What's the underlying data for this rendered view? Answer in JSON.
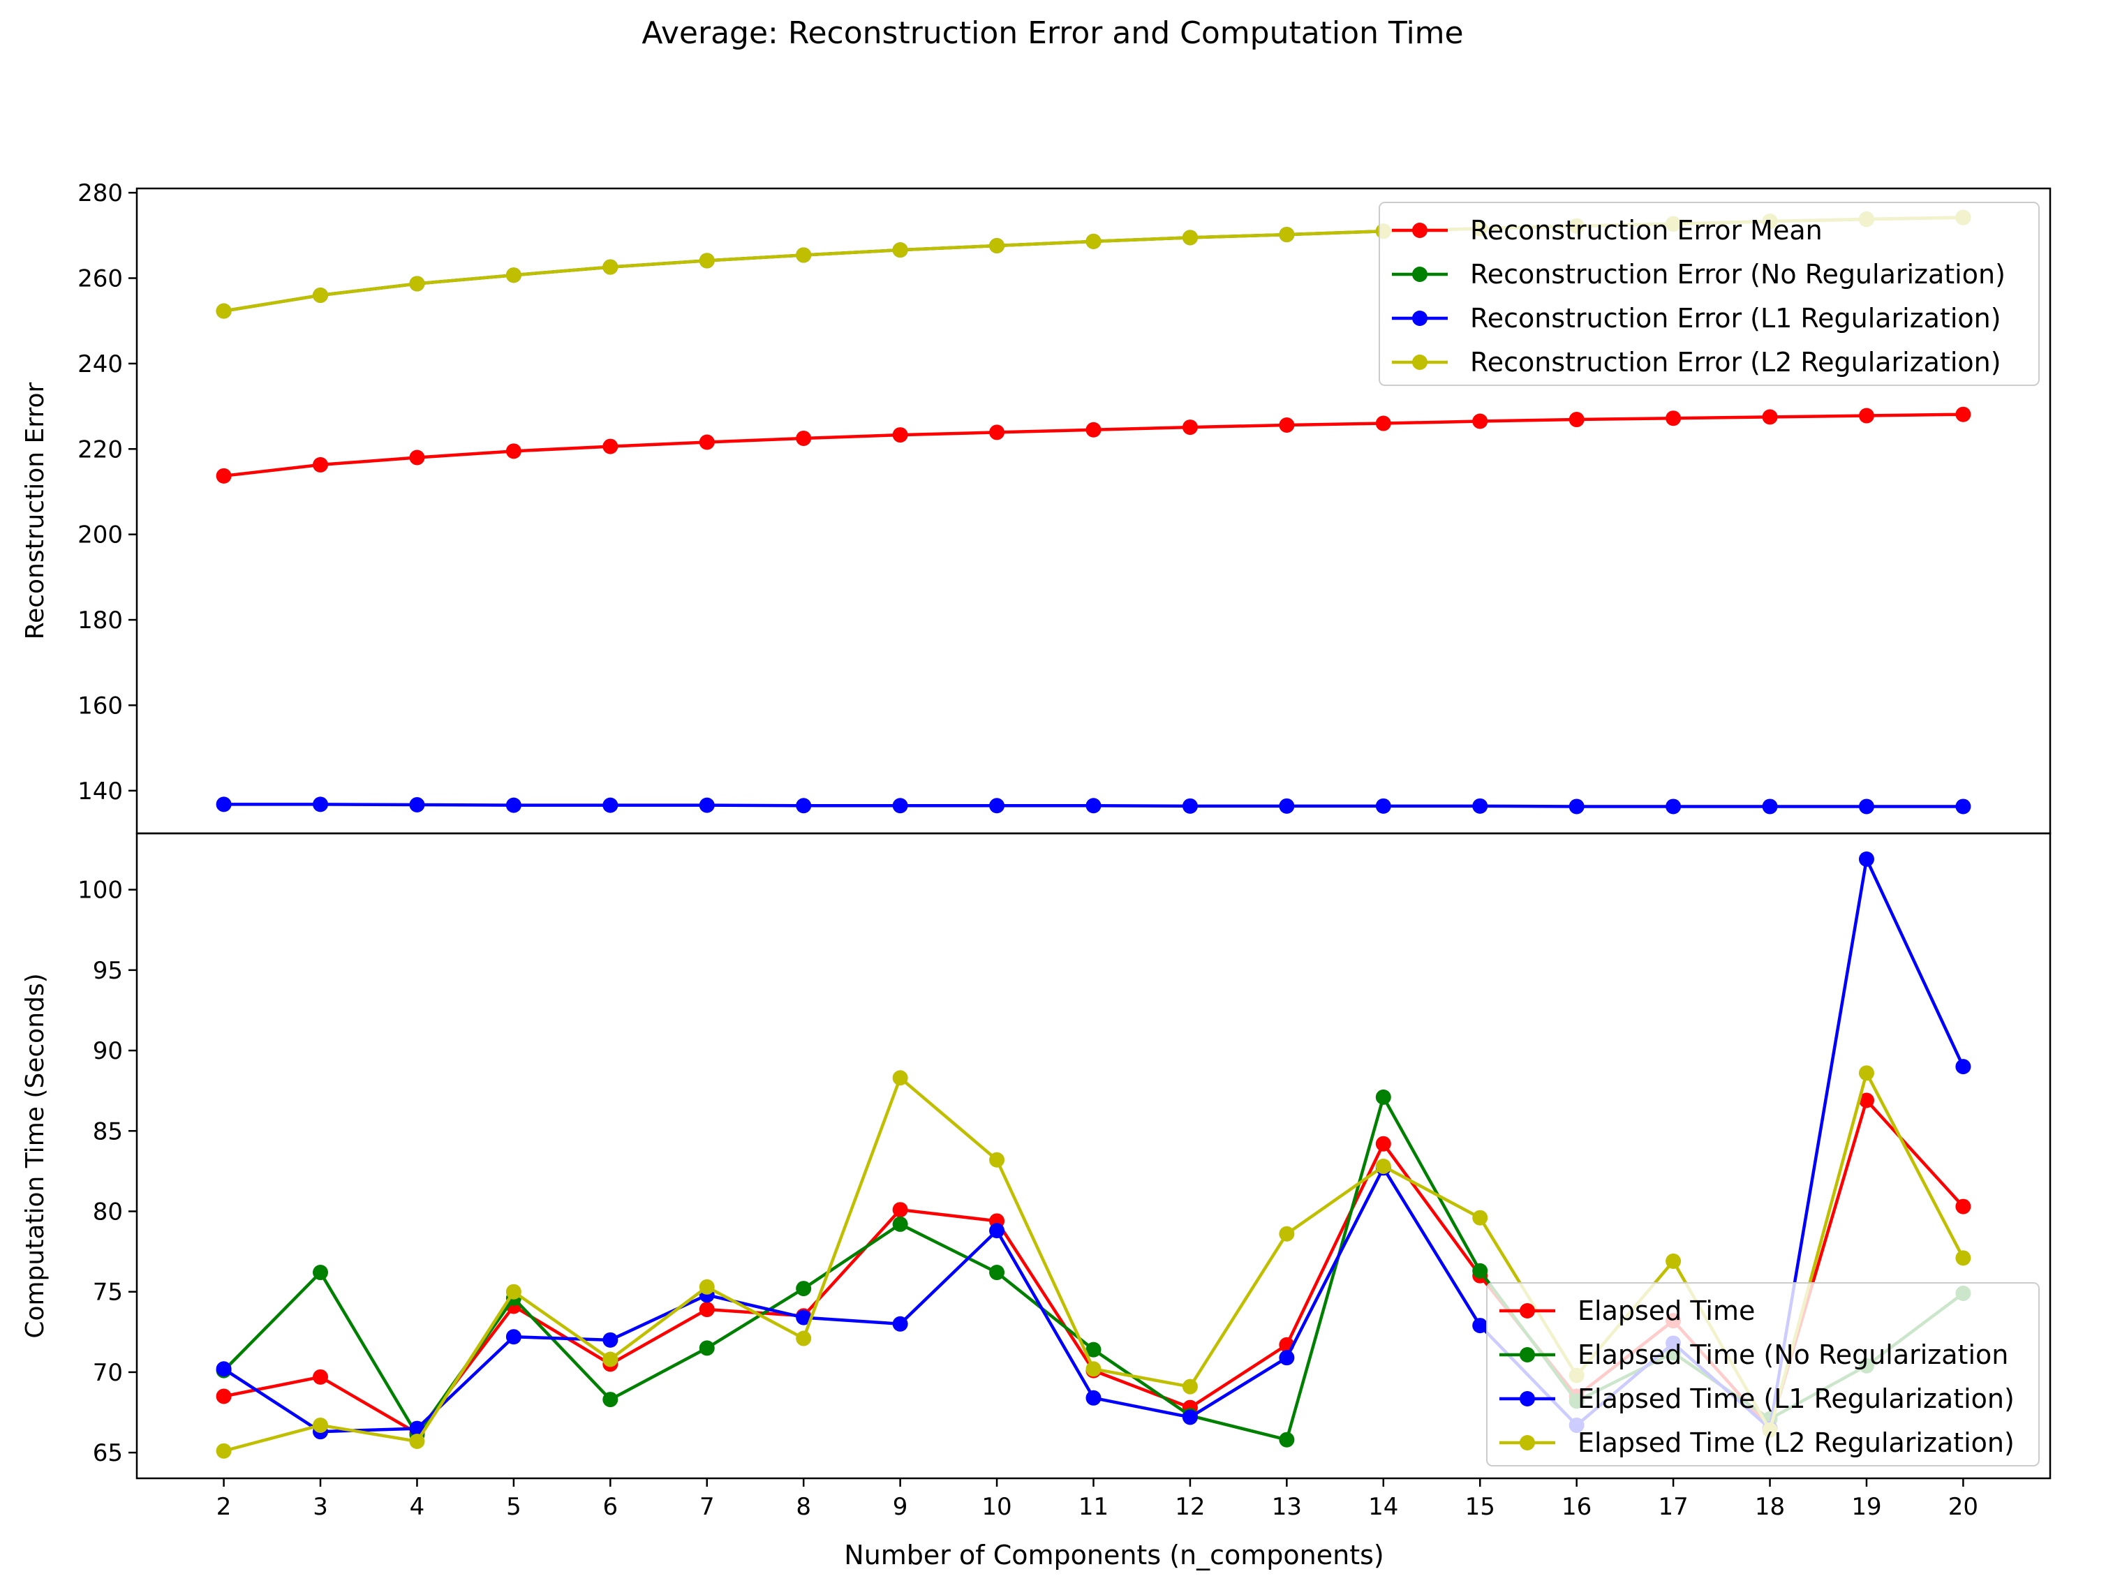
{
  "figure": {
    "title": "Average: Reconstruction Error and Computation Time",
    "xlabel": "Number of Components (n_components)"
  },
  "chart_data": [
    {
      "type": "line",
      "ylabel": "Reconstruction Error",
      "ylim": [
        130,
        281
      ],
      "yticks": [
        140,
        160,
        180,
        200,
        220,
        240,
        260,
        280
      ],
      "legend_position": "top-right",
      "grid": false,
      "x": [
        2,
        3,
        4,
        5,
        6,
        7,
        8,
        9,
        10,
        11,
        12,
        13,
        14,
        15,
        16,
        17,
        18,
        19,
        20
      ],
      "series": [
        {
          "name": "Reconstruction Error Mean",
          "color": "#ff0000",
          "values": [
            213.7,
            216.3,
            218.0,
            219.5,
            220.6,
            221.6,
            222.5,
            223.3,
            223.9,
            224.5,
            225.1,
            225.6,
            226.0,
            226.5,
            226.9,
            227.2,
            227.5,
            227.8,
            228.1
          ]
        },
        {
          "name": "Reconstruction Error (No Regularization)",
          "color": "#008000",
          "values": [
            252.3,
            256.0,
            258.7,
            260.7,
            262.6,
            264.1,
            265.4,
            266.6,
            267.6,
            268.6,
            269.5,
            270.2,
            271.0,
            271.6,
            272.2,
            272.7,
            273.3,
            273.8,
            274.2
          ]
        },
        {
          "name": "Reconstruction Error (L1 Regularization)",
          "color": "#0000ff",
          "values": [
            136.8,
            136.8,
            136.7,
            136.6,
            136.6,
            136.6,
            136.5,
            136.5,
            136.5,
            136.5,
            136.4,
            136.4,
            136.4,
            136.4,
            136.3,
            136.3,
            136.3,
            136.3,
            136.3
          ]
        },
        {
          "name": "Reconstruction Error (L2 Regularization)",
          "color": "#bfbf00",
          "values": [
            252.3,
            256.0,
            258.7,
            260.7,
            262.6,
            264.1,
            265.4,
            266.6,
            267.6,
            268.6,
            269.5,
            270.2,
            271.0,
            271.6,
            272.2,
            272.7,
            273.3,
            273.8,
            274.2
          ]
        }
      ]
    },
    {
      "type": "line",
      "ylabel": "Computation Time (Seconds)",
      "ylim": [
        63.4,
        103.5
      ],
      "yticks": [
        65,
        70,
        75,
        80,
        85,
        90,
        95,
        100
      ],
      "legend_position": "bottom-right",
      "grid": false,
      "x": [
        2,
        3,
        4,
        5,
        6,
        7,
        8,
        9,
        10,
        11,
        12,
        13,
        14,
        15,
        16,
        17,
        18,
        19,
        20
      ],
      "series": [
        {
          "name": "Elapsed Time",
          "color": "#ff0000",
          "values": [
            68.5,
            69.7,
            66.2,
            74.1,
            70.5,
            73.9,
            73.5,
            80.1,
            79.4,
            70.1,
            67.8,
            71.7,
            84.2,
            76.0,
            68.5,
            73.2,
            66.5,
            86.9,
            80.3
          ]
        },
        {
          "name": "Elapsed Time (No Regularization",
          "color": "#008000",
          "values": [
            70.1,
            76.2,
            66.1,
            74.6,
            68.3,
            71.5,
            75.2,
            79.2,
            76.2,
            71.4,
            67.3,
            65.8,
            87.1,
            76.3,
            68.2,
            71.2,
            67.1,
            70.4,
            74.9
          ]
        },
        {
          "name": "Elapsed Time (L1 Regularization)",
          "color": "#0000ff",
          "values": [
            70.2,
            66.3,
            66.5,
            72.2,
            72.0,
            74.8,
            73.4,
            73.0,
            78.8,
            68.4,
            67.2,
            70.9,
            82.7,
            72.9,
            66.7,
            71.8,
            66.5,
            101.9,
            89.0
          ]
        },
        {
          "name": "Elapsed Time (L2 Regularization)",
          "color": "#bfbf00",
          "values": [
            65.1,
            66.7,
            65.7,
            75.0,
            70.8,
            75.3,
            72.1,
            88.3,
            83.2,
            70.2,
            69.1,
            78.6,
            82.8,
            79.6,
            69.8,
            76.9,
            66.4,
            88.6,
            77.1
          ]
        }
      ]
    }
  ]
}
